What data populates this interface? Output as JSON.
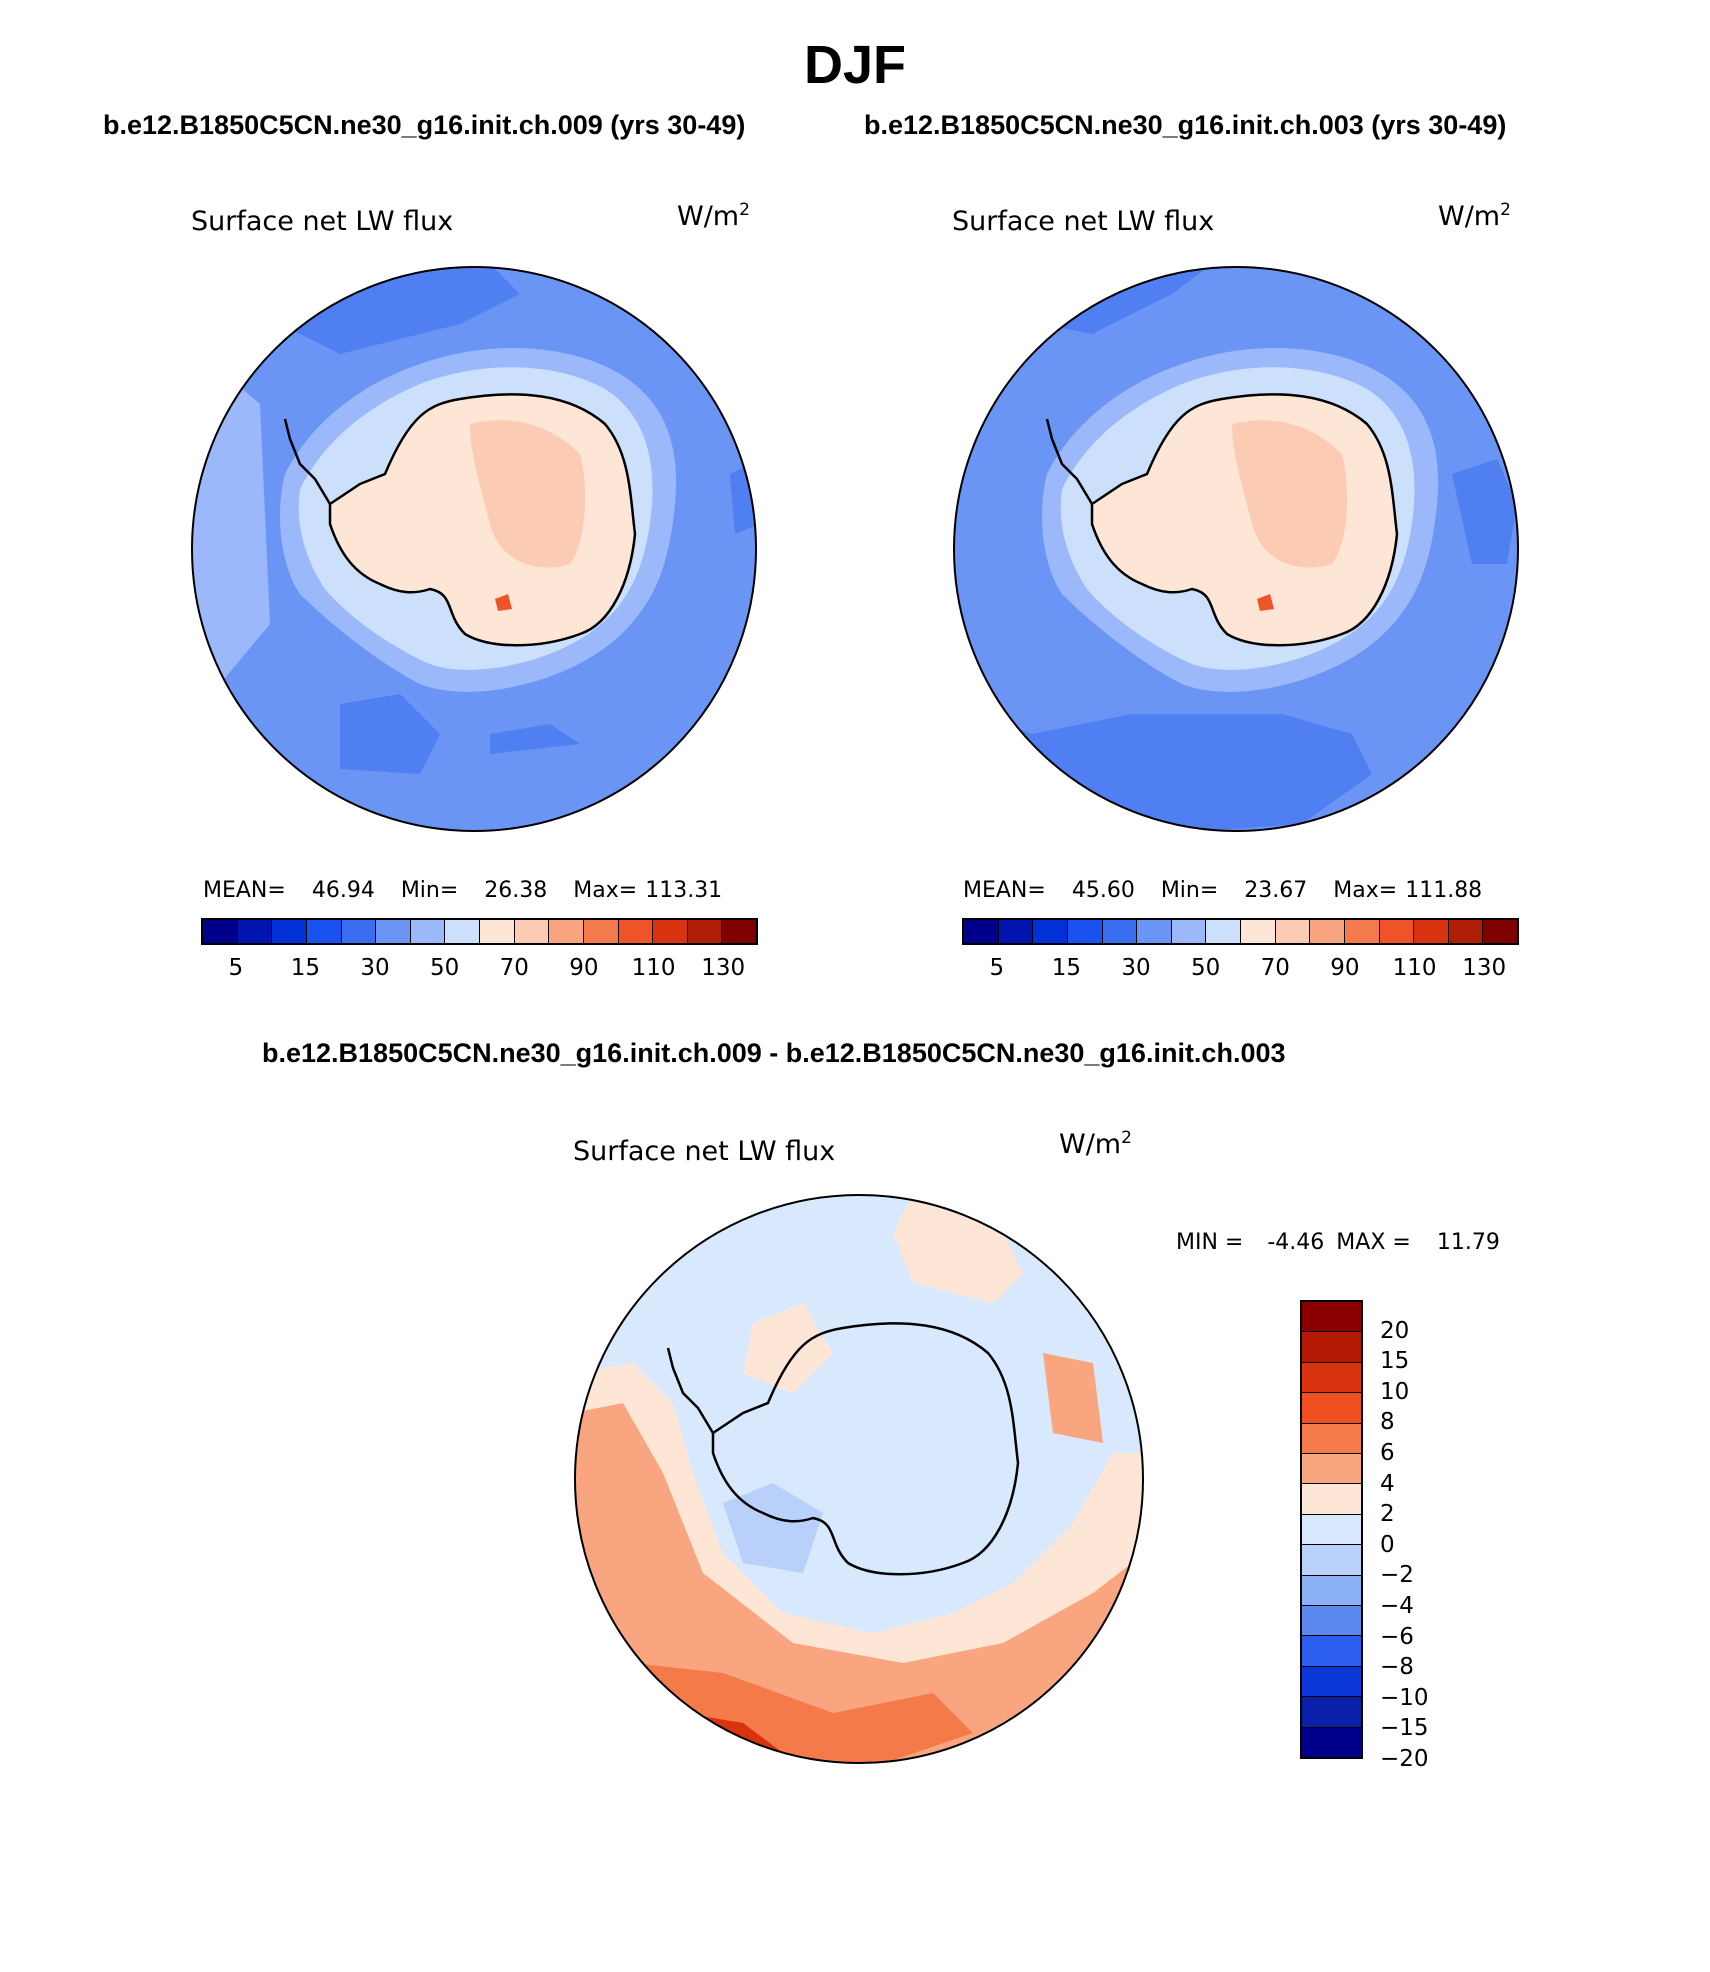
{
  "title": "DJF",
  "left": {
    "case": "b.e12.B1850C5CN.ne30_g16.init.ch.009 (yrs 30-49)",
    "label": "Surface net LW flux",
    "units": "W/m",
    "units_exp": "2",
    "mean_label": "MEAN=",
    "mean": "46.94",
    "min_label": "Min=",
    "min": "26.38",
    "max_label": "Max=",
    "max": "113.31"
  },
  "right": {
    "case": "b.e12.B1850C5CN.ne30_g16.init.ch.003 (yrs 30-49)",
    "label": "Surface net LW flux",
    "units": "W/m",
    "units_exp": "2",
    "mean_label": "MEAN=",
    "mean": "45.60",
    "min_label": "Min=",
    "min": "23.67",
    "max_label": "Max=",
    "max": "111.88"
  },
  "diff": {
    "title": "b.e12.B1850C5CN.ne30_g16.init.ch.009 - b.e12.B1850C5CN.ne30_g16.init.ch.003",
    "label": "Surface net LW flux",
    "units": "W/m",
    "units_exp": "2",
    "min_label": "MIN =",
    "min": "-4.46",
    "max_label": "MAX =",
    "max": "11.79"
  },
  "colorbar_main": {
    "colors": [
      "#00008a",
      "#0014b0",
      "#0030d8",
      "#1a52f0",
      "#3a6ef0",
      "#6a95f5",
      "#9ab8fa",
      "#cde0fb",
      "#fde6d6",
      "#fccbb4",
      "#f8a47e",
      "#f47a4e",
      "#ef5328",
      "#d8330e",
      "#b01d05",
      "#800000"
    ],
    "tick_labels": [
      "5",
      "15",
      "30",
      "50",
      "70",
      "90",
      "110",
      "130"
    ]
  },
  "colorbar_diff": {
    "colors": [
      "#8a0000",
      "#b31905",
      "#d8330e",
      "#f0501f",
      "#f57a4a",
      "#f8a580",
      "#fde6d6",
      "#d8e8fd",
      "#b8d0fa",
      "#8ab0f5",
      "#5a8af0",
      "#2c5ff0",
      "#0b36d8",
      "#0a20a8",
      "#00008a"
    ],
    "tick_labels": [
      "20",
      "15",
      "10",
      "8",
      "6",
      "4",
      "2",
      "0",
      "−2",
      "−4",
      "−6",
      "−8",
      "−10",
      "−15",
      "−20"
    ]
  },
  "map_colors": {
    "ocean_a": "#6a95f5",
    "ocean_b": "#4f7ff0",
    "ocean_c": "#9ab8fa",
    "coast": "#cde0fb",
    "land": "#fde6d6",
    "land_b": "#fccbb4",
    "hot": "#ef5328",
    "diff_blue": "#d8e8fd",
    "diff_blue_b": "#b8d0fa",
    "diff_pos_a": "#fde6d6",
    "diff_pos_b": "#f8a580",
    "diff_pos_c": "#f57a4a",
    "diff_pos_d": "#d8330e"
  }
}
